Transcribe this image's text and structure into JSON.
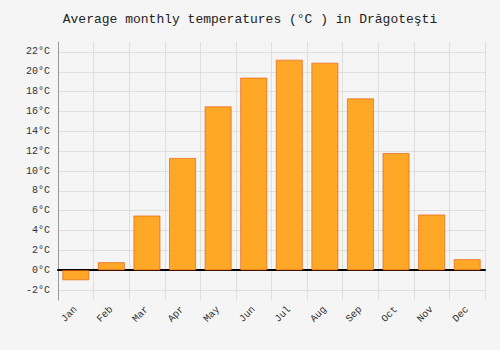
{
  "chart_data": {
    "type": "bar",
    "title": "Average monthly temperatures (°C ) in Drăgoteşti",
    "categories": [
      "Jan",
      "Feb",
      "Mar",
      "Apr",
      "May",
      "Jun",
      "Jul",
      "Aug",
      "Sep",
      "Oct",
      "Nov",
      "Dec"
    ],
    "values": [
      -1.0,
      0.8,
      5.5,
      11.3,
      16.5,
      19.4,
      21.2,
      20.9,
      17.3,
      11.8,
      5.6,
      1.1
    ],
    "color": "#FFA726",
    "ylim": [
      -3,
      23
    ],
    "yticks": [
      {
        "value": -2,
        "label": "-2°C"
      },
      {
        "value": 0,
        "label": "0°C"
      },
      {
        "value": 2,
        "label": "2°C"
      },
      {
        "value": 4,
        "label": "4°C"
      },
      {
        "value": 6,
        "label": "6°C"
      },
      {
        "value": 8,
        "label": "8°C"
      },
      {
        "value": 10,
        "label": "10°C"
      },
      {
        "value": 12,
        "label": "12°C"
      },
      {
        "value": 14,
        "label": "14°C"
      },
      {
        "value": 16,
        "label": "16°C"
      },
      {
        "value": 18,
        "label": "18°C"
      },
      {
        "value": 20,
        "label": "20°C"
      },
      {
        "value": 22,
        "label": "22°C"
      }
    ],
    "grid": true
  }
}
